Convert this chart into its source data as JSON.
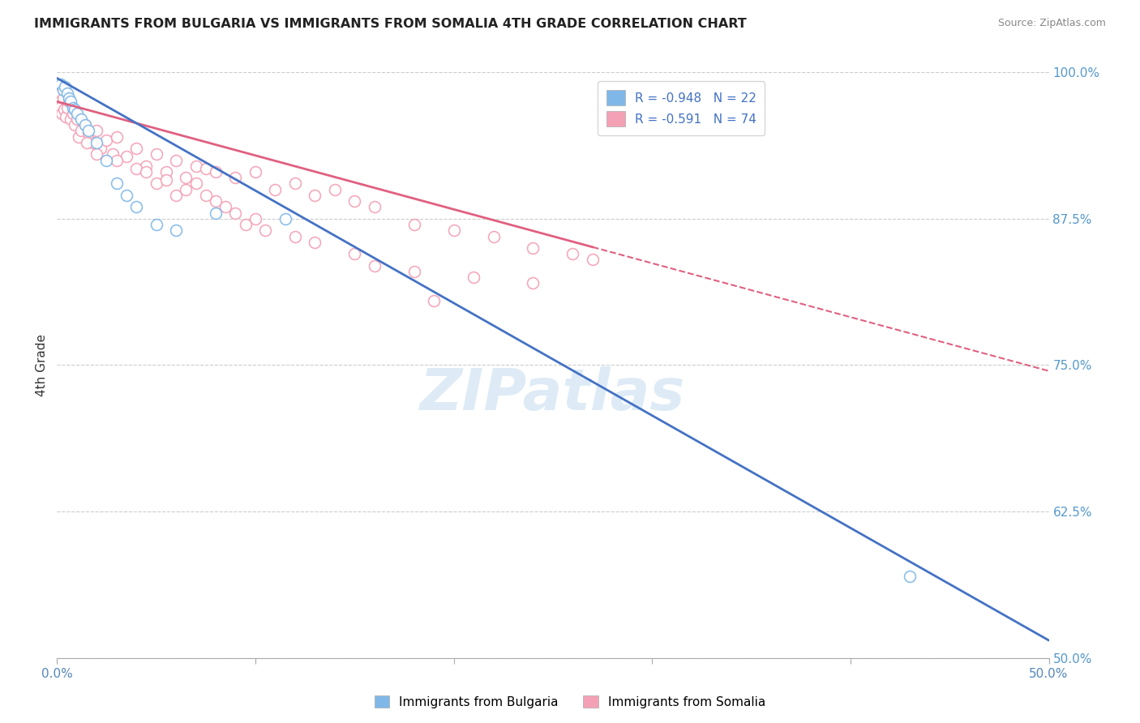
{
  "title": "IMMIGRANTS FROM BULGARIA VS IMMIGRANTS FROM SOMALIA 4TH GRADE CORRELATION CHART",
  "source": "Source: ZipAtlas.com",
  "ylabel": "4th Grade",
  "right_yticks": [
    100.0,
    87.5,
    75.0,
    62.5,
    50.0
  ],
  "right_yticklabels": [
    "100.0%",
    "87.5%",
    "75.0%",
    "62.5%",
    "50.0%"
  ],
  "xmin": 0.0,
  "xmax": 50.0,
  "ymin": 50.0,
  "ymax": 100.0,
  "blue_color": "#7fb8e8",
  "pink_color": "#f4a0b5",
  "blue_line_color": "#4472C4",
  "pink_line_color": "#e06080",
  "blue_R": -0.948,
  "blue_N": 22,
  "pink_R": -0.591,
  "pink_N": 74,
  "legend_label_blue": "Immigrants from Bulgaria",
  "legend_label_pink": "Immigrants from Somalia",
  "watermark": "ZIPatlas",
  "blue_line_x0": 0.0,
  "blue_line_y0": 99.5,
  "blue_line_x1": 50.0,
  "blue_line_y1": 51.5,
  "pink_line_x0": 0.0,
  "pink_line_y0": 97.5,
  "pink_line_x1": 50.0,
  "pink_line_y1": 74.5,
  "pink_solid_end_x": 27.0,
  "blue_scatter_x": [
    0.2,
    0.3,
    0.4,
    0.5,
    0.6,
    0.7,
    0.8,
    0.9,
    1.0,
    1.2,
    1.4,
    1.6,
    2.0,
    2.5,
    3.0,
    3.5,
    4.0,
    5.0,
    6.0,
    8.0,
    11.5,
    43.0
  ],
  "blue_scatter_y": [
    99.0,
    98.5,
    98.8,
    98.2,
    97.8,
    97.5,
    97.0,
    96.8,
    96.5,
    96.0,
    95.5,
    95.0,
    94.0,
    92.5,
    90.5,
    89.5,
    88.5,
    87.0,
    86.5,
    88.0,
    87.5,
    57.0
  ],
  "pink_scatter_x": [
    0.05,
    0.1,
    0.15,
    0.2,
    0.25,
    0.3,
    0.35,
    0.4,
    0.45,
    0.5,
    0.6,
    0.7,
    0.8,
    0.9,
    1.0,
    1.1,
    1.2,
    1.4,
    1.6,
    1.8,
    2.0,
    2.2,
    2.5,
    2.8,
    3.0,
    3.5,
    4.0,
    4.5,
    5.0,
    5.5,
    6.0,
    6.5,
    7.0,
    7.5,
    8.0,
    9.0,
    10.0,
    11.0,
    12.0,
    13.0,
    14.0,
    15.0,
    16.0,
    18.0,
    20.0,
    22.0,
    24.0,
    26.0,
    1.5,
    2.0,
    3.0,
    4.0,
    5.0,
    6.0,
    7.0,
    8.0,
    9.0,
    10.0,
    12.0,
    15.0,
    18.0,
    21.0,
    24.0,
    27.0,
    4.5,
    5.5,
    6.5,
    7.5,
    8.5,
    9.5,
    10.5,
    13.0,
    16.0,
    19.0
  ],
  "pink_scatter_y": [
    98.0,
    97.5,
    97.0,
    98.2,
    96.5,
    97.8,
    96.8,
    98.5,
    96.2,
    97.0,
    97.5,
    96.0,
    96.5,
    95.5,
    96.0,
    94.5,
    95.0,
    95.5,
    94.8,
    94.0,
    95.0,
    93.5,
    94.2,
    93.0,
    94.5,
    92.8,
    93.5,
    92.0,
    93.0,
    91.5,
    92.5,
    91.0,
    92.0,
    91.8,
    91.5,
    91.0,
    91.5,
    90.0,
    90.5,
    89.5,
    90.0,
    89.0,
    88.5,
    87.0,
    86.5,
    86.0,
    85.0,
    84.5,
    94.0,
    93.0,
    92.5,
    91.8,
    90.5,
    89.5,
    90.5,
    89.0,
    88.0,
    87.5,
    86.0,
    84.5,
    83.0,
    82.5,
    82.0,
    84.0,
    91.5,
    90.8,
    90.0,
    89.5,
    88.5,
    87.0,
    86.5,
    85.5,
    83.5,
    80.5
  ]
}
